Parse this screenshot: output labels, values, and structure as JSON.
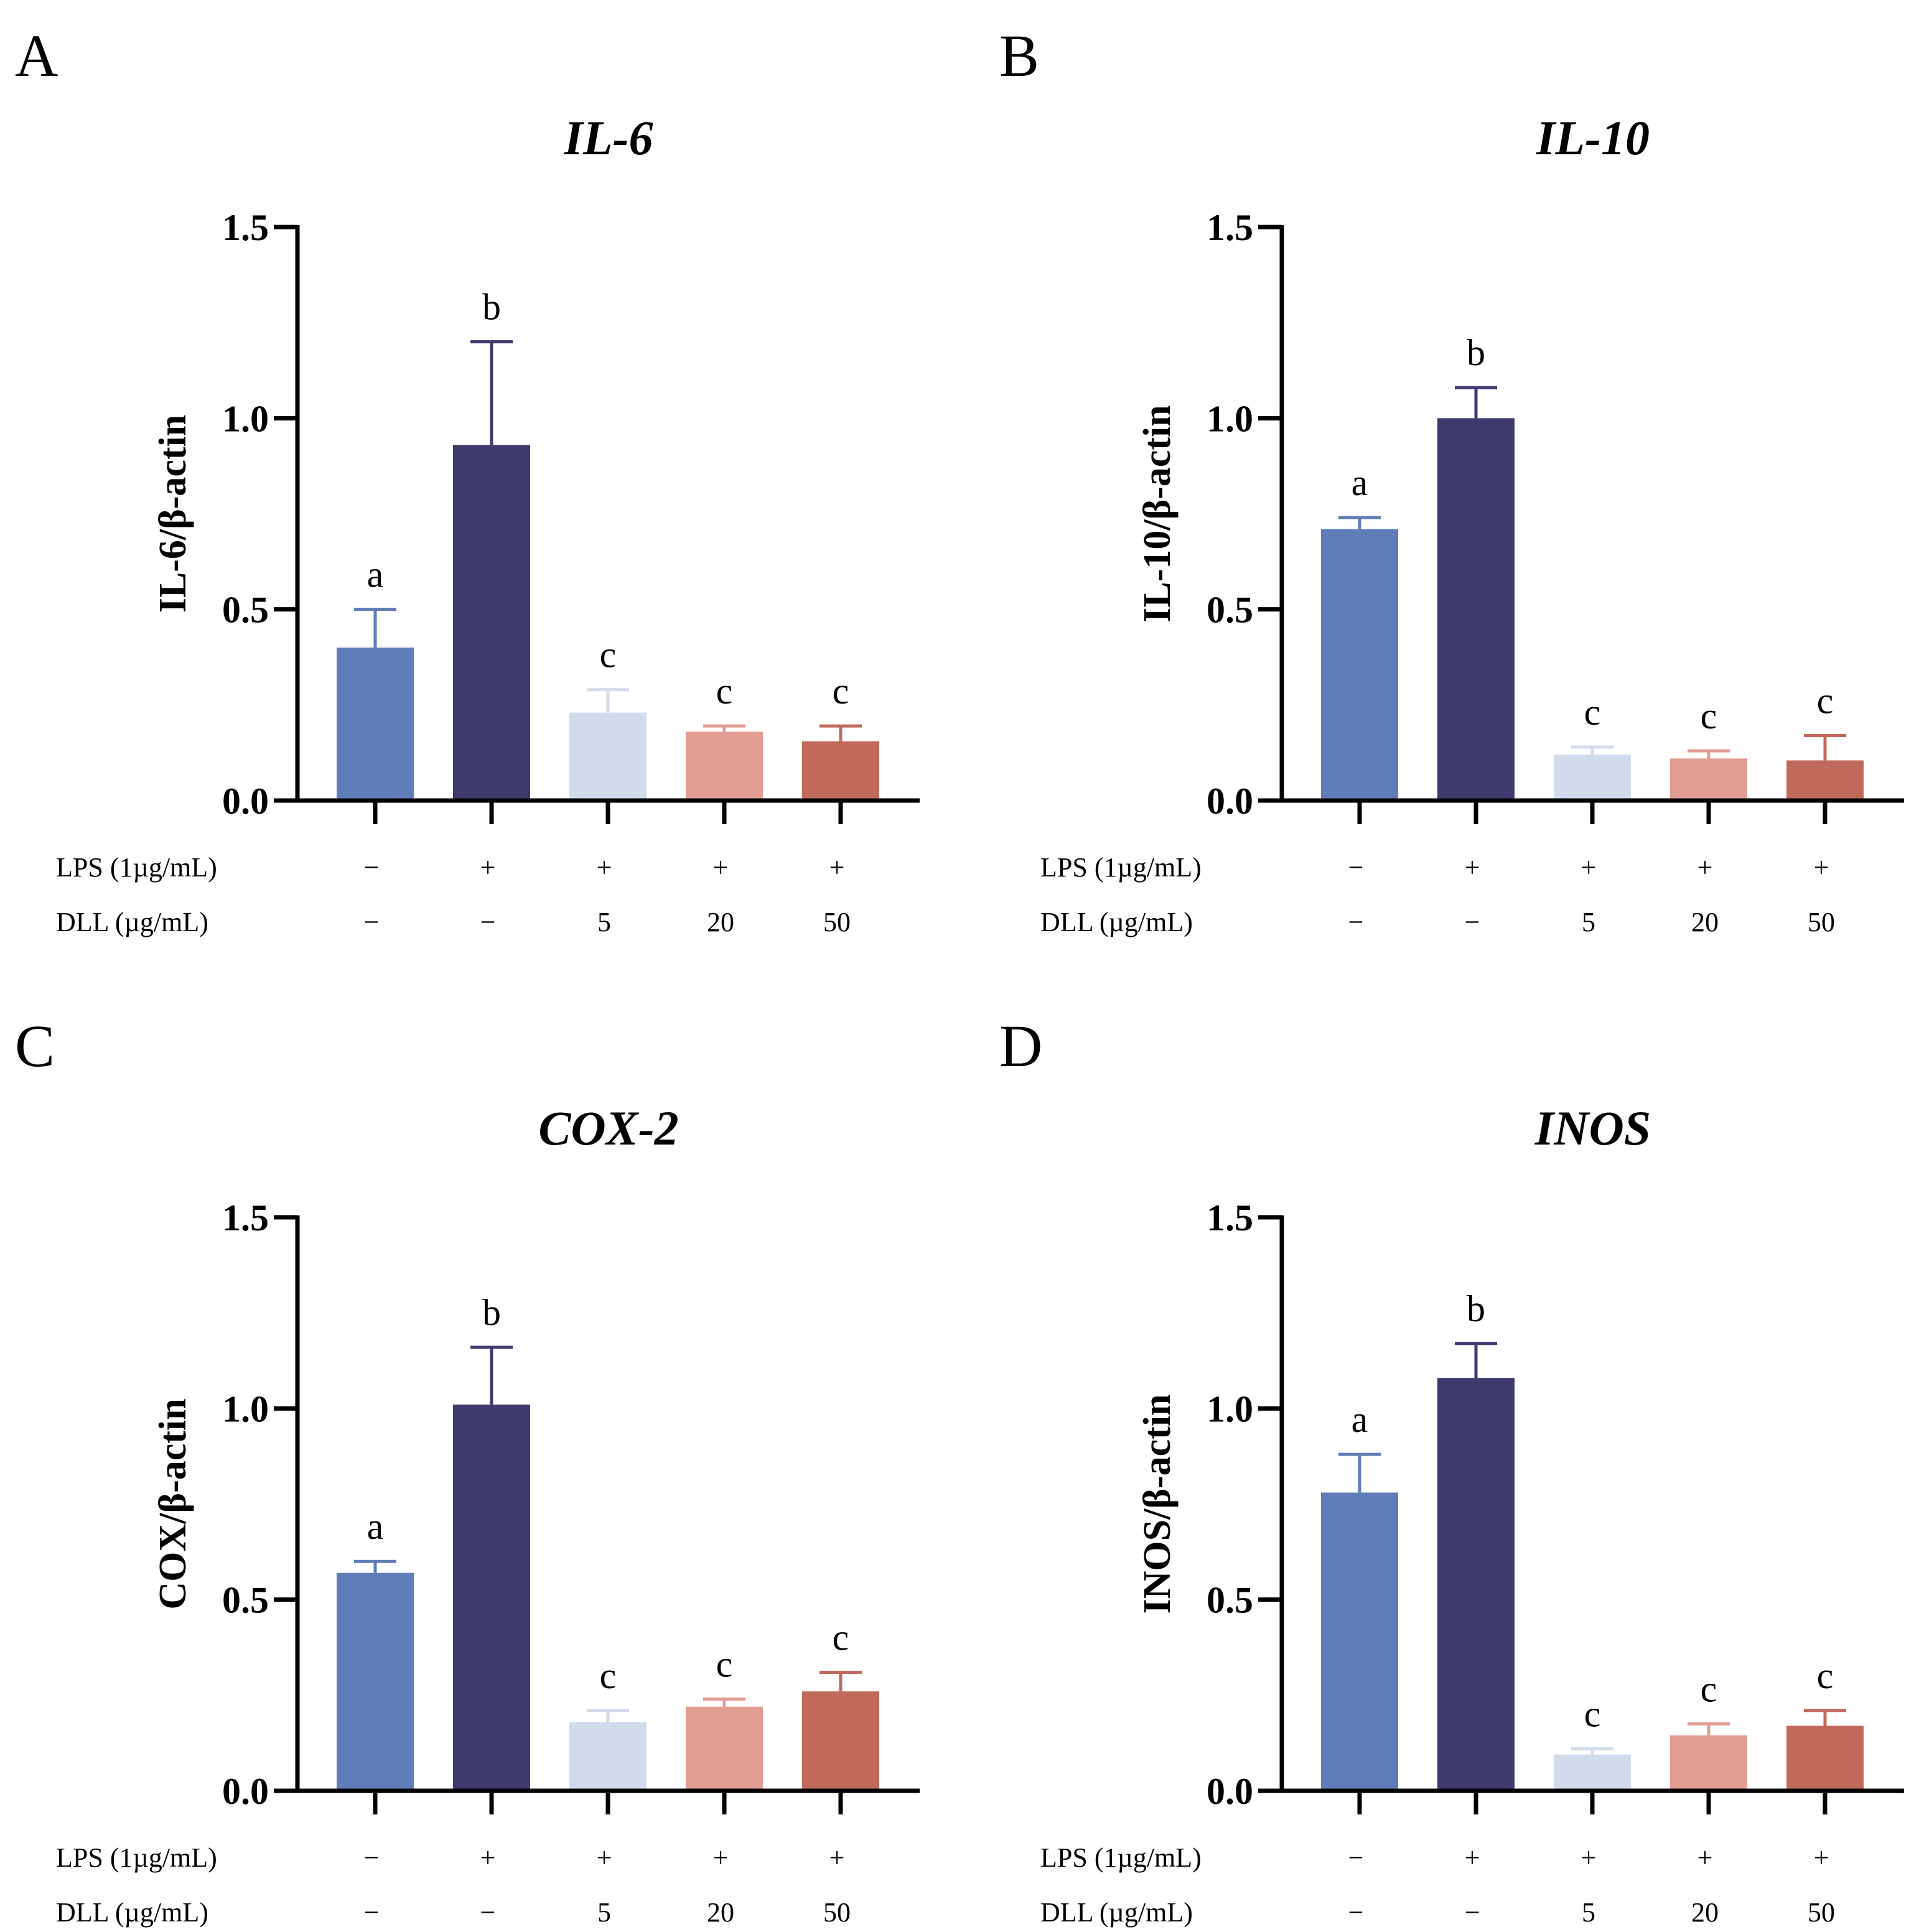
{
  "chart_data": [
    {
      "panel": "A",
      "type": "bar",
      "title": "IL-6",
      "ylabel": "IL-6/β-actin",
      "xlabel": "",
      "ylim": [
        0,
        1.5
      ],
      "yticks": [
        "0.0",
        "0.5",
        "1.0",
        "1.5"
      ],
      "ytick_values": [
        0,
        0.5,
        1.0,
        1.5
      ],
      "values": [
        0.4,
        0.93,
        0.23,
        0.18,
        0.155
      ],
      "errors": [
        0.1,
        0.27,
        0.06,
        0.015,
        0.04
      ],
      "significance": [
        "a",
        "b",
        "c",
        "c",
        "c"
      ],
      "colors": [
        "#617db9",
        "#3e3a6e",
        "#d1dbec",
        "#e29d92",
        "#c06a5c"
      ],
      "conditions": {
        "row1_label": "LPS (1µg/mL)",
        "row1": [
          "−",
          "+",
          "+",
          "+",
          "+"
        ],
        "row2_label": "DLL (µg/mL)",
        "row2": [
          "−",
          "−",
          "5",
          "20",
          "50"
        ]
      }
    },
    {
      "panel": "B",
      "type": "bar",
      "title": "IL-10",
      "ylabel": "IL-10/β-actin",
      "xlabel": "",
      "ylim": [
        0,
        1.5
      ],
      "yticks": [
        "0.0",
        "0.5",
        "1.0",
        "1.5"
      ],
      "ytick_values": [
        0,
        0.5,
        1.0,
        1.5
      ],
      "values": [
        0.71,
        1.0,
        0.12,
        0.11,
        0.105
      ],
      "errors": [
        0.03,
        0.08,
        0.02,
        0.02,
        0.065
      ],
      "significance": [
        "a",
        "b",
        "c",
        "c",
        "c"
      ],
      "colors": [
        "#617db9",
        "#3e3a6e",
        "#d1dbec",
        "#e29d92",
        "#c06a5c"
      ],
      "conditions": {
        "row1_label": "LPS (1µg/mL)",
        "row1": [
          "−",
          "+",
          "+",
          "+",
          "+"
        ],
        "row2_label": "DLL (µg/mL)",
        "row2": [
          "−",
          "−",
          "5",
          "20",
          "50"
        ]
      }
    },
    {
      "panel": "C",
      "type": "bar",
      "title": "COX-2",
      "ylabel": "COX/β-actin",
      "xlabel": "",
      "ylim": [
        0,
        1.5
      ],
      "yticks": [
        "0.0",
        "0.5",
        "1.0",
        "1.5"
      ],
      "ytick_values": [
        0,
        0.5,
        1.0,
        1.5
      ],
      "values": [
        0.57,
        1.01,
        0.18,
        0.22,
        0.26
      ],
      "errors": [
        0.03,
        0.15,
        0.03,
        0.02,
        0.05
      ],
      "significance": [
        "a",
        "b",
        "c",
        "c",
        "c"
      ],
      "colors": [
        "#617db9",
        "#3e3a6e",
        "#d1dbec",
        "#e29d92",
        "#c06a5c"
      ],
      "conditions": {
        "row1_label": "LPS (1µg/mL)",
        "row1": [
          "−",
          "+",
          "+",
          "+",
          "+"
        ],
        "row2_label": "DLL (µg/mL)",
        "row2": [
          "−",
          "−",
          "5",
          "20",
          "50"
        ]
      }
    },
    {
      "panel": "D",
      "type": "bar",
      "title": "INOS",
      "ylabel": "INOS/β-actin",
      "xlabel": "",
      "ylim": [
        0,
        1.5
      ],
      "yticks": [
        "0.0",
        "0.5",
        "1.0",
        "1.5"
      ],
      "ytick_values": [
        0,
        0.5,
        1.0,
        1.5
      ],
      "values": [
        0.78,
        1.08,
        0.095,
        0.145,
        0.17
      ],
      "errors": [
        0.1,
        0.09,
        0.015,
        0.03,
        0.04
      ],
      "significance": [
        "a",
        "b",
        "c",
        "c",
        "c"
      ],
      "colors": [
        "#617db9",
        "#3e3a6e",
        "#d1dbec",
        "#e29d92",
        "#c06a5c"
      ],
      "conditions": {
        "row1_label": "LPS (1µg/mL)",
        "row1": [
          "−",
          "+",
          "+",
          "+",
          "+"
        ],
        "row2_label": "DLL (µg/mL)",
        "row2": [
          "−",
          "−",
          "5",
          "20",
          "50"
        ]
      }
    }
  ]
}
